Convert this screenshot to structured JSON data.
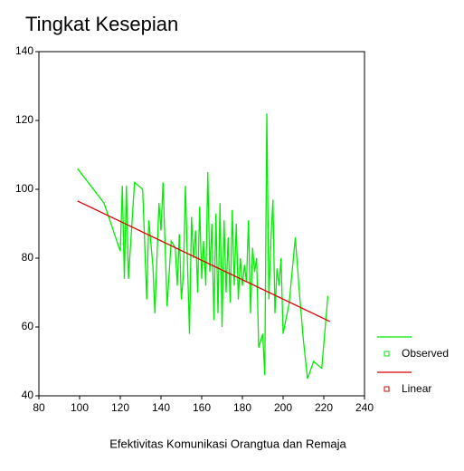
{
  "chart_data": {
    "type": "line",
    "title": "Tingkat Kesepian",
    "xlabel": "Efektivitas Komunikasi Orangtua dan Remaja",
    "xlim": [
      80,
      240
    ],
    "xticks": [
      80,
      100,
      120,
      140,
      160,
      180,
      200,
      220,
      240
    ],
    "ylim": [
      40,
      140
    ],
    "yticks": [
      40,
      60,
      80,
      100,
      120,
      140
    ],
    "series": [
      {
        "name": "Observed",
        "color": "#00ee00",
        "x": [
          99,
          112,
          120,
          121,
          122,
          123,
          124,
          127,
          131,
          133,
          134,
          136,
          137,
          139,
          140,
          141,
          143,
          145,
          147,
          148,
          149,
          150,
          151,
          152,
          153,
          154,
          155,
          156,
          157,
          158,
          159,
          160,
          161,
          162,
          163,
          164,
          165,
          166,
          167,
          168,
          169,
          170,
          171,
          172,
          173,
          174,
          175,
          176,
          177,
          178,
          179,
          180,
          181,
          182,
          183,
          184,
          185,
          186,
          187,
          188,
          190,
          191,
          192,
          193,
          194,
          195,
          196,
          197,
          198,
          199,
          200,
          203,
          206,
          208,
          210,
          212,
          215,
          219,
          222
        ],
        "values": [
          106,
          96,
          82,
          101,
          74,
          101,
          74,
          102,
          100,
          68,
          91,
          78,
          64,
          96,
          88,
          102,
          66,
          85,
          83,
          72,
          87,
          68,
          75,
          101,
          79,
          58,
          92,
          80,
          88,
          70,
          95,
          74,
          85,
          72,
          105,
          76,
          90,
          62,
          93,
          64,
          96,
          60,
          91,
          70,
          86,
          67,
          94,
          72,
          90,
          68,
          80,
          72,
          78,
          73,
          91,
          64,
          83,
          76,
          80,
          54,
          58,
          46,
          122,
          68,
          85,
          97,
          64,
          77,
          72,
          80,
          58,
          67,
          86,
          70,
          56,
          45,
          50,
          48,
          69
        ]
      },
      {
        "name": "Linear",
        "color": "#dd0000",
        "x": [
          99,
          223
        ],
        "values": [
          96.6,
          61.6
        ]
      }
    ]
  }
}
